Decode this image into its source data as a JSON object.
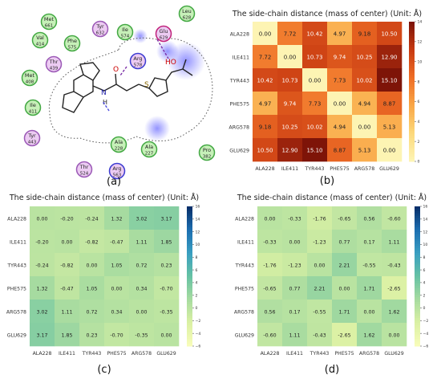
{
  "panel_labels": {
    "a": "(a)",
    "b": "(b)",
    "c": "(c)",
    "d": "(d)"
  },
  "diagram": {
    "residues": [
      {
        "id": "met661",
        "line1": "Met",
        "line2": "661",
        "kind": "hydrophobic"
      },
      {
        "id": "tyr632",
        "line1": "Tyr",
        "line2": "632",
        "kind": "polar"
      },
      {
        "id": "ile574",
        "line1": "Ile",
        "line2": "574",
        "kind": "hydrophobic"
      },
      {
        "id": "glu629",
        "line1": "Glu",
        "line2": "629",
        "kind": "negative"
      },
      {
        "id": "leu628",
        "line1": "Leu",
        "line2": "628",
        "kind": "hydrophobic"
      },
      {
        "id": "val414",
        "line1": "Val",
        "line2": "414",
        "kind": "hydrophobic"
      },
      {
        "id": "phe575",
        "line1": "Phe",
        "line2": "575",
        "kind": "hydrophobic"
      },
      {
        "id": "arg578",
        "line1": "Arg",
        "line2": "578",
        "kind": "positive"
      },
      {
        "id": "thr439",
        "line1": "Thr",
        "line2": "439",
        "kind": "polar"
      },
      {
        "id": "met408",
        "line1": "Met",
        "line2": "408",
        "kind": "hydrophobic"
      },
      {
        "id": "ile411",
        "line1": "Ile",
        "line2": "411",
        "kind": "hydrophobic"
      },
      {
        "id": "tyr443",
        "line1": "Tyr",
        "line2": "443",
        "kind": "polar"
      },
      {
        "id": "ala228",
        "line1": "Ala",
        "line2": "228",
        "kind": "hydrophobic"
      },
      {
        "id": "ala227",
        "line1": "Ala",
        "line2": "227",
        "kind": "hydrophobic"
      },
      {
        "id": "pro382",
        "line1": "Pro",
        "line2": "382",
        "kind": "hydrophobic"
      },
      {
        "id": "thr524",
        "line1": "Thr",
        "line2": "524",
        "kind": "polar"
      },
      {
        "id": "arg563",
        "line1": "Arg",
        "line2": "563",
        "kind": "positive"
      }
    ],
    "atom_labels": {
      "oxygen": "O",
      "nitrogen": "N",
      "hydroxyl": "HO",
      "sulfur": "S",
      "h": "H"
    },
    "colors": {
      "hydrophobic_fill": "#c6f0b8",
      "hydrophobic_stroke": "#43a843",
      "polar_fill": "#eccbf2",
      "polar_stroke": "#9b59b6",
      "positive_stroke": "#3b3bd0",
      "negative_stroke": "#c0227a",
      "hbond_sidechain": "#7b2fa8",
      "hbond_backbone": "#4a4ae0"
    }
  },
  "chart_data": [
    {
      "type": "heatmap",
      "panel": "b",
      "title": "The side-chain distance (mass of center) (Unit: Å)",
      "xlabels": [
        "ALA228",
        "ILE411",
        "TYR443",
        "PHE575",
        "ARG578",
        "GLU629"
      ],
      "ylabels": [
        "ALA228",
        "ILE411",
        "TYR443",
        "PHE575",
        "ARG578",
        "GLU629"
      ],
      "values": [
        [
          0.0,
          7.72,
          10.42,
          4.97,
          9.18,
          10.5
        ],
        [
          7.72,
          0.0,
          10.73,
          9.74,
          10.25,
          12.9
        ],
        [
          10.42,
          10.73,
          0.0,
          7.73,
          10.02,
          15.1
        ],
        [
          4.97,
          9.74,
          7.73,
          0.0,
          4.94,
          8.87
        ],
        [
          9.18,
          10.25,
          10.02,
          4.94,
          0.0,
          5.13
        ],
        [
          10.5,
          12.9,
          15.1,
          8.87,
          5.13,
          0.0
        ]
      ],
      "colorbar": {
        "min": 0,
        "max": 14,
        "ticks": [
          0,
          2,
          4,
          6,
          8,
          10,
          12,
          14
        ]
      },
      "colormap": [
        "#fdf4b3",
        "#fcd87a",
        "#f9a646",
        "#ef6e26",
        "#c83b12",
        "#7e1408"
      ]
    },
    {
      "type": "heatmap",
      "panel": "c",
      "title": "The side-chain distance (mass of center) (Unit: Å)",
      "xlabels": [
        "ALA228",
        "ILE411",
        "TYR443",
        "PHE575",
        "ARG578",
        "GLU629"
      ],
      "ylabels": [
        "ALA228",
        "ILE411",
        "TYR443",
        "PHE575",
        "ARG578",
        "GLU629"
      ],
      "values": [
        [
          0.0,
          -0.2,
          -0.24,
          1.32,
          3.02,
          3.17
        ],
        [
          -0.2,
          0.0,
          -0.82,
          -0.47,
          1.11,
          1.85
        ],
        [
          -0.24,
          -0.82,
          0.0,
          1.05,
          0.72,
          0.23
        ],
        [
          1.32,
          -0.47,
          1.05,
          0.0,
          0.34,
          -0.7
        ],
        [
          3.02,
          1.11,
          0.72,
          0.34,
          0.0,
          -0.35
        ],
        [
          3.17,
          1.85,
          0.23,
          -0.7,
          -0.35,
          0.0
        ]
      ],
      "colorbar": {
        "min": -6,
        "max": 16,
        "ticks": [
          16,
          14,
          12,
          10,
          8,
          6,
          4,
          2,
          0,
          -2,
          -4,
          -6
        ]
      },
      "colormap": [
        "#f7fcb9",
        "#d9f0a3",
        "#a6dba0",
        "#66c2a4",
        "#3a9fc1",
        "#1d6fb1",
        "#08306b"
      ]
    },
    {
      "type": "heatmap",
      "panel": "d",
      "title": "The side-chain distance (mass of center) (Unit: Å)",
      "xlabels": [
        "ALA228",
        "ILE411",
        "TYR443",
        "PHE575",
        "ARG578",
        "GLU629"
      ],
      "ylabels": [
        "ALA228",
        "ILE411",
        "TYR443",
        "PHE575",
        "ARG578",
        "GLU629"
      ],
      "values": [
        [
          0.0,
          -0.33,
          -1.76,
          -0.65,
          0.56,
          -0.6
        ],
        [
          -0.33,
          0.0,
          -1.23,
          0.77,
          0.17,
          1.11
        ],
        [
          -1.76,
          -1.23,
          0.0,
          2.21,
          -0.55,
          -0.43
        ],
        [
          -0.65,
          0.77,
          2.21,
          0.0,
          1.71,
          -2.65
        ],
        [
          0.56,
          0.17,
          -0.55,
          1.71,
          0.0,
          1.62
        ],
        [
          -0.6,
          1.11,
          -0.43,
          -2.65,
          1.62,
          0.0
        ]
      ],
      "colorbar": {
        "min": -6,
        "max": 16,
        "ticks": [
          16,
          14,
          12,
          10,
          8,
          6,
          4,
          2,
          0,
          -2,
          -4,
          -6
        ]
      },
      "colormap": [
        "#f7fcb9",
        "#d9f0a3",
        "#a6dba0",
        "#66c2a4",
        "#3a9fc1",
        "#1d6fb1",
        "#08306b"
      ]
    }
  ]
}
